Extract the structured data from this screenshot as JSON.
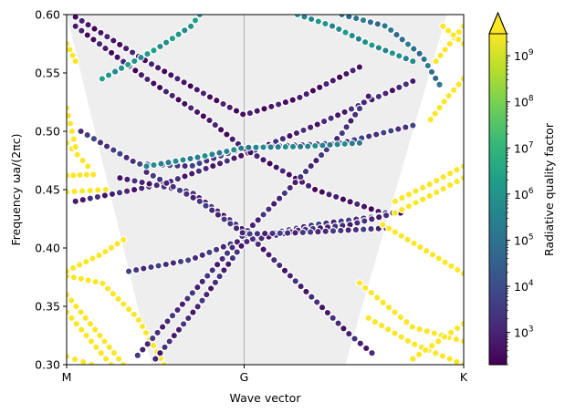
{
  "chart_data": {
    "type": "scatter",
    "title": "",
    "xlabel": "Wave vector",
    "ylabel": "Frequency ωa/(2πc)",
    "ylim": [
      0.3,
      0.6
    ],
    "ytick_labels": [
      "0.30",
      "0.35",
      "0.40",
      "0.45",
      "0.50",
      "0.55",
      "0.60"
    ],
    "ytick_values": [
      0.3,
      0.35,
      0.4,
      0.45,
      0.5,
      0.55,
      0.6
    ],
    "x_ticks": [
      {
        "label": "M",
        "x": 0
      },
      {
        "label": "G",
        "x": 1
      },
      {
        "label": "K",
        "x": 2.2365
      }
    ],
    "xlim": [
      0,
      2.2365
    ],
    "grid": false,
    "light_cone": {
      "color": "#eeeeee",
      "M_side": [
        {
          "x": 0,
          "y": 0.6
        },
        {
          "x": 0.0,
          "y": 0.6
        },
        {
          "x": 0.48,
          "y": 0.3
        },
        {
          "x": 0.0,
          "y": 0.6
        }
      ],
      "polygon": [
        {
          "x": 0.0,
          "y": 0.6
        },
        {
          "x": 0.48,
          "y": 0.3
        },
        {
          "x": 1.57,
          "y": 0.3
        },
        {
          "x": 2.14,
          "y": 0.6
        }
      ]
    },
    "vline_at": 1,
    "colorbar": {
      "label": "Radiative quality factor",
      "scale": "log",
      "min": 200,
      "max": 3000000000,
      "tick_exponents": [
        3,
        4,
        5,
        6,
        7,
        8,
        9
      ],
      "tick_base": "10",
      "extend": "max",
      "colormap": [
        "#440154",
        "#482878",
        "#3e4989",
        "#31688e",
        "#26828e",
        "#1f9e89",
        "#35b779",
        "#6ece58",
        "#b5de2b",
        "#fde725"
      ]
    },
    "series": [
      {
        "kind": "band",
        "side": "M",
        "color_q": 9.5,
        "points": [
          [
            0.0,
            0.307
          ],
          [
            0.14,
            0.3
          ]
        ]
      },
      {
        "kind": "band",
        "side": "M",
        "color_q": 9.5,
        "points": [
          [
            0.0,
            0.345
          ],
          [
            0.25,
            0.3
          ]
        ]
      },
      {
        "kind": "band",
        "side": "M",
        "color_q": 9.5,
        "points": [
          [
            0.0,
            0.36
          ],
          [
            0.32,
            0.3
          ]
        ]
      },
      {
        "kind": "band",
        "side": "M",
        "color_q": 9.5,
        "points": [
          [
            0.0,
            0.376
          ],
          [
            0.2,
            0.37
          ],
          [
            0.4,
            0.34
          ],
          [
            0.55,
            0.3
          ]
        ]
      },
      {
        "kind": "band",
        "side": "M",
        "color_q": 9.5,
        "points": [
          [
            0.0,
            0.38
          ],
          [
            0.2,
            0.395
          ],
          [
            0.32,
            0.407
          ]
        ]
      },
      {
        "kind": "band",
        "side": "M",
        "color_q": 9.5,
        "points": [
          [
            0.0,
            0.448
          ],
          [
            0.22,
            0.45
          ]
        ]
      },
      {
        "kind": "band",
        "side": "M",
        "color_q": 9.5,
        "points": [
          [
            0.0,
            0.462
          ],
          [
            0.15,
            0.463
          ]
        ]
      },
      {
        "kind": "band",
        "side": "M",
        "color_q": 9.5,
        "points": [
          [
            0.0,
            0.49
          ],
          [
            0.12,
            0.47
          ]
        ]
      },
      {
        "kind": "band",
        "side": "M",
        "color_q": 9.5,
        "points": [
          [
            0.0,
            0.52
          ],
          [
            0.06,
            0.48
          ]
        ]
      },
      {
        "kind": "band",
        "side": "M",
        "color_q": 9.5,
        "points": [
          [
            0.0,
            0.575
          ],
          [
            0.05,
            0.56
          ]
        ]
      },
      {
        "kind": "band",
        "side": "G",
        "color_q": 3.0,
        "points": [
          [
            0.05,
            0.44
          ],
          [
            0.55,
            0.455
          ],
          [
            1.0,
            0.48
          ],
          [
            1.4,
            0.505
          ],
          [
            1.95,
            0.543
          ]
        ]
      },
      {
        "kind": "band",
        "side": "G",
        "color_q": 3.5,
        "points": [
          [
            0.08,
            0.5
          ],
          [
            0.4,
            0.472
          ],
          [
            0.7,
            0.47
          ],
          [
            1.0,
            0.486
          ],
          [
            1.55,
            0.49
          ],
          [
            1.95,
            0.505
          ]
        ]
      },
      {
        "kind": "band",
        "side": "G",
        "color_q": 2.7,
        "points": [
          [
            0.05,
            0.598
          ],
          [
            0.45,
            0.56
          ],
          [
            0.8,
            0.53
          ],
          [
            1.0,
            0.514
          ],
          [
            1.3,
            0.528
          ],
          [
            1.65,
            0.555
          ]
        ]
      },
      {
        "kind": "band",
        "side": "G",
        "color_q": 2.7,
        "points": [
          [
            0.05,
            0.59
          ],
          [
            0.45,
            0.545
          ],
          [
            0.8,
            0.51
          ],
          [
            1.0,
            0.485
          ],
          [
            1.4,
            0.45
          ],
          [
            1.78,
            0.43
          ],
          [
            1.88,
            0.43
          ]
        ]
      },
      {
        "kind": "band",
        "side": "G",
        "color_q": 3.4,
        "points": [
          [
            0.35,
            0.38
          ],
          [
            0.7,
            0.39
          ],
          [
            1.0,
            0.408
          ],
          [
            1.4,
            0.42
          ],
          [
            1.8,
            0.428
          ]
        ]
      },
      {
        "kind": "band",
        "side": "G",
        "color_q": 3.2,
        "points": [
          [
            0.4,
            0.308
          ],
          [
            0.7,
            0.36
          ],
          [
            1.0,
            0.412
          ],
          [
            1.3,
            0.458
          ],
          [
            1.55,
            0.498
          ],
          [
            1.7,
            0.53
          ]
        ]
      },
      {
        "kind": "band",
        "side": "G",
        "color_q": 3.1,
        "points": [
          [
            0.5,
            0.305
          ],
          [
            0.75,
            0.352
          ],
          [
            1.0,
            0.405
          ],
          [
            1.3,
            0.415
          ],
          [
            1.6,
            0.42
          ],
          [
            1.8,
            0.428
          ]
        ]
      },
      {
        "kind": "band",
        "side": "G",
        "color_q": 3.0,
        "points": [
          [
            0.3,
            0.46
          ],
          [
            0.7,
            0.448
          ],
          [
            1.0,
            0.415
          ],
          [
            1.3,
            0.37
          ],
          [
            1.6,
            0.325
          ],
          [
            1.72,
            0.31
          ]
        ]
      },
      {
        "kind": "band",
        "side": "G",
        "color_q": 3.3,
        "points": [
          [
            0.45,
            0.465
          ],
          [
            0.75,
            0.44
          ],
          [
            1.0,
            0.412
          ],
          [
            1.3,
            0.413
          ],
          [
            1.55,
            0.415
          ],
          [
            1.8,
            0.417
          ]
        ]
      },
      {
        "kind": "band",
        "side": "G",
        "color_q": 5.5,
        "points": [
          [
            0.45,
            0.47
          ],
          [
            0.75,
            0.478
          ],
          [
            1.0,
            0.486
          ],
          [
            1.35,
            0.487
          ],
          [
            1.65,
            0.49
          ]
        ]
      },
      {
        "kind": "band",
        "side": "G",
        "color_q": 6.0,
        "points": [
          [
            0.2,
            0.545
          ],
          [
            0.5,
            0.57
          ],
          [
            0.7,
            0.59
          ],
          [
            0.75,
            0.6
          ]
        ]
      },
      {
        "kind": "band",
        "side": "G",
        "color_q": 5.8,
        "points": [
          [
            1.3,
            0.6
          ],
          [
            1.5,
            0.59
          ],
          [
            1.7,
            0.575
          ],
          [
            1.95,
            0.56
          ]
        ]
      },
      {
        "kind": "band",
        "side": "G",
        "color_q": 5.0,
        "points": [
          [
            1.55,
            0.6
          ],
          [
            1.8,
            0.59
          ],
          [
            2.0,
            0.565
          ],
          [
            2.1,
            0.54
          ]
        ]
      },
      {
        "kind": "band",
        "side": "K",
        "color_q": 9.5,
        "points": [
          [
            1.7,
            0.34
          ],
          [
            1.95,
            0.318
          ],
          [
            2.2365,
            0.3
          ]
        ]
      },
      {
        "kind": "band",
        "side": "K",
        "color_q": 9.5,
        "points": [
          [
            1.65,
            0.37
          ],
          [
            1.95,
            0.332
          ],
          [
            2.2365,
            0.32
          ]
        ]
      },
      {
        "kind": "band",
        "side": "K",
        "color_q": 9.5,
        "points": [
          [
            1.78,
            0.42
          ],
          [
            2.0,
            0.4
          ],
          [
            2.2365,
            0.378
          ]
        ]
      },
      {
        "kind": "band",
        "side": "K",
        "color_q": 9.5,
        "points": [
          [
            1.85,
            0.44
          ],
          [
            2.05,
            0.455
          ],
          [
            2.2365,
            0.47
          ]
        ]
      },
      {
        "kind": "band",
        "side": "K",
        "color_q": 9.5,
        "points": [
          [
            1.85,
            0.43
          ],
          [
            2.05,
            0.445
          ],
          [
            2.2365,
            0.46
          ]
        ]
      },
      {
        "kind": "band",
        "side": "K",
        "color_q": 9.5,
        "points": [
          [
            2.05,
            0.51
          ],
          [
            2.15,
            0.53
          ],
          [
            2.2365,
            0.545
          ]
        ]
      },
      {
        "kind": "band",
        "side": "K",
        "color_q": 9.5,
        "points": [
          [
            2.08,
            0.56
          ],
          [
            2.2365,
            0.59
          ]
        ]
      },
      {
        "kind": "band",
        "side": "K",
        "color_q": 9.5,
        "points": [
          [
            2.12,
            0.59
          ],
          [
            2.2365,
            0.575
          ]
        ]
      },
      {
        "kind": "band",
        "side": "K",
        "color_q": 9.5,
        "points": [
          [
            1.95,
            0.305
          ],
          [
            2.2365,
            0.335
          ]
        ]
      }
    ]
  }
}
